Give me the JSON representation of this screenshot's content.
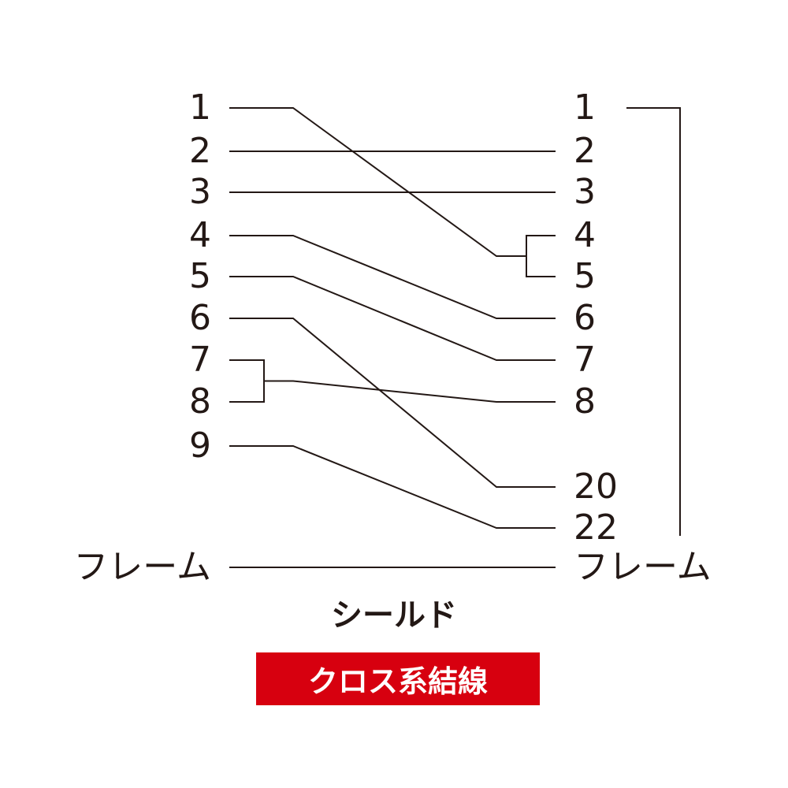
{
  "left_pins": [
    "1",
    "2",
    "3",
    "4",
    "5",
    "6",
    "7",
    "8",
    "9"
  ],
  "right_pins": [
    "1",
    "2",
    "3",
    "4",
    "5",
    "6",
    "7",
    "8",
    "20",
    "22"
  ],
  "frame_left": "フレーム",
  "frame_right": "フレーム",
  "shield_label": "シールド",
  "badge": {
    "text": "クロス系結線",
    "color": "#d7000f"
  },
  "connections": [
    {
      "from": "1",
      "to": [
        "4",
        "5"
      ]
    },
    {
      "from": "2",
      "to": [
        "2"
      ]
    },
    {
      "from": "3",
      "to": [
        "3"
      ]
    },
    {
      "from": "4",
      "to": [
        "6"
      ]
    },
    {
      "from": "5",
      "to": [
        "7"
      ]
    },
    {
      "from": "6",
      "to": [
        "20"
      ]
    },
    {
      "from": [
        "7",
        "8"
      ],
      "to": [
        "8"
      ]
    },
    {
      "from": "9",
      "to": [
        "22"
      ]
    },
    {
      "from": "フレーム",
      "to": [
        "フレーム"
      ]
    }
  ],
  "shield_bracket": {
    "from": "1",
    "to": "22",
    "side": "right"
  },
  "line_color": "#231815"
}
